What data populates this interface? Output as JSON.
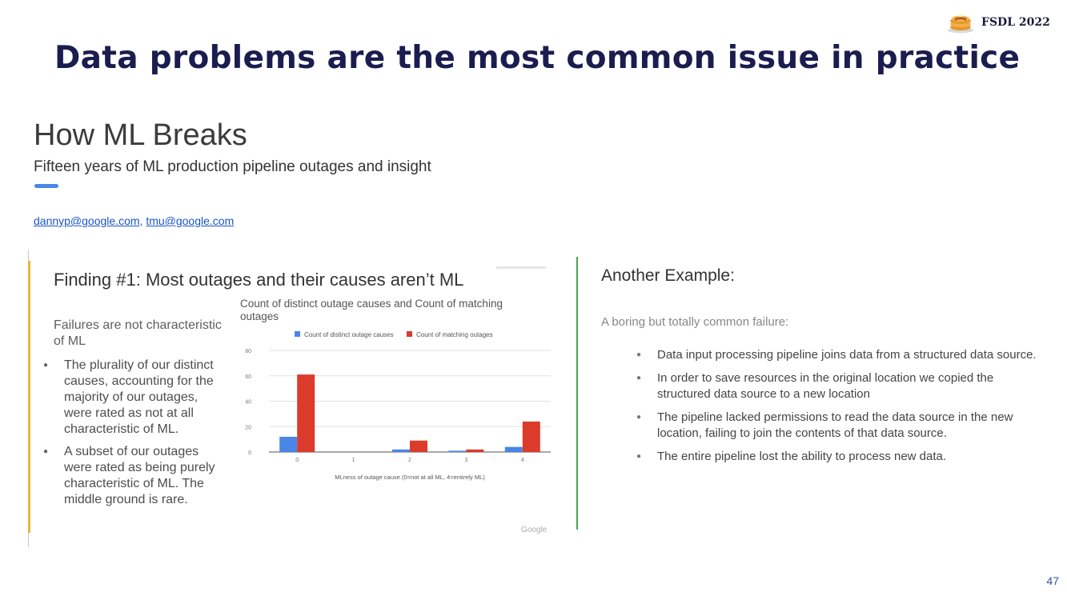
{
  "header": {
    "logo_icon": "pancake-stack-icon",
    "logo_text": "FSDL 2022",
    "title": "Data problems are the most common issue in practice"
  },
  "paper": {
    "title": "How ML Breaks",
    "subtitle": "Fifteen years of ML production pipeline outages and insight",
    "email1": "dannyp@google.com",
    "separator": ",",
    "email2": "tmu@google.com"
  },
  "finding": {
    "title": "Finding #1: Most outages and their causes aren’t ML",
    "intro": "Failures are not characteristic of ML",
    "bullets": [
      "The plurality of our distinct causes, accounting for the majority of our outages, were rated as not at all characteristic of ML.",
      "A subset of our outages were rated as being purely characteristic of ML. The middle ground is rare."
    ],
    "chart_title": "Count of distinct outage causes and Count of matching outages",
    "footer_mark": "Google"
  },
  "example": {
    "title": "Another Example:",
    "intro": "A boring but totally common failure:",
    "bullets": [
      "Data input processing pipeline joins data from a structured data source.",
      "In order to save resources in the original location we copied the structured data source to a new location",
      "The pipeline lacked permissions to read the data source in the new location, failing to join the contents of that data source.",
      "The entire pipeline lost the ability to process new data."
    ]
  },
  "page_number": "47",
  "chart_data": {
    "type": "bar",
    "title": "Count of distinct outage causes and Count of matching outages",
    "categories": [
      "0",
      "1",
      "2",
      "3",
      "4"
    ],
    "series": [
      {
        "name": "Count of distinct outage causes",
        "color": "#4a86e8",
        "values": [
          12,
          0,
          2,
          1,
          4
        ]
      },
      {
        "name": "Count of matching outages",
        "color": "#db3b2b",
        "values": [
          61,
          0,
          9,
          2,
          24
        ]
      }
    ],
    "xlabel": "MLness of outage cause (0=not at all ML, 4=entirely ML)",
    "ylabel": "",
    "ylim": [
      0,
      80
    ],
    "yticks": [
      0,
      20,
      40,
      60,
      80
    ],
    "grid": true,
    "legend": "top"
  }
}
